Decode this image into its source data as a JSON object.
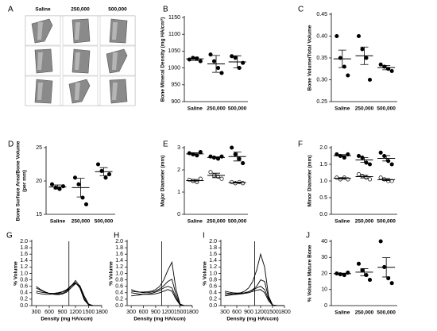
{
  "images": {
    "label": "A",
    "columns": [
      "Saline",
      "250,000",
      "500,000"
    ]
  },
  "chart_data": [
    {
      "type": "dot",
      "label": "B",
      "ylabel": [
        "Bone Mineral Density (mg HA/cm³)"
      ],
      "categories": [
        "Saline",
        "250,000",
        "500,000"
      ],
      "ylim": [
        900,
        1150
      ],
      "yticks": [
        900,
        950,
        1000,
        1050,
        1100,
        1150
      ],
      "series": [
        {
          "marker": "filled",
          "points": [
            [
              1025,
              1030,
              1028,
              1020
            ],
            [
              1040,
              1020,
              1000,
              985
            ],
            [
              1035,
              1030,
              1000,
              1015
            ]
          ],
          "mean": [
            1027,
            1012,
            1018
          ],
          "sem": [
            5,
            25,
            18
          ]
        }
      ]
    },
    {
      "type": "dot",
      "label": "C",
      "ylabel": [
        "Bone Volume/Total Volume"
      ],
      "categories": [
        "Saline",
        "250,000",
        "500,000"
      ],
      "ylim": [
        0.25,
        0.45
      ],
      "yticks": [
        0.25,
        {
          "value": 0.3,
          "label": "0.30"
        },
        0.35,
        {
          "value": 0.4,
          "label": "0.40"
        },
        0.45
      ],
      "series": [
        {
          "marker": "filled",
          "points": [
            [
              0.4,
              0.35,
              0.33,
              0.31
            ],
            [
              0.4,
              0.37,
              0.35,
              0.3
            ],
            [
              0.335,
              0.33,
              0.325,
              0.32
            ]
          ],
          "mean": [
            0.348,
            0.355,
            0.328
          ],
          "sem": [
            0.02,
            0.02,
            0.005
          ]
        }
      ]
    },
    {
      "type": "dot",
      "label": "D",
      "ylabel": [
        "Bone Surface Area/Bone Volume",
        "(per mm)"
      ],
      "categories": [
        "Saline",
        "250,000",
        "500,000"
      ],
      "ylim": [
        15,
        25
      ],
      "yticks": [
        15,
        20,
        25
      ],
      "series": [
        {
          "marker": "filled",
          "points": [
            [
              19.5,
              19,
              18.8,
              19.2
            ],
            [
              20.5,
              19.5,
              17.5,
              16.5
            ],
            [
              22.5,
              21.5,
              20.5,
              21
            ]
          ],
          "mean": [
            19.1,
            19,
            21.4
          ],
          "sem": [
            0.3,
            1.4,
            0.6
          ]
        }
      ]
    },
    {
      "type": "dot",
      "label": "E",
      "ylabel": [
        "Major Diameter  (mm)"
      ],
      "categories": [
        "Saline",
        "250,000",
        "500,000"
      ],
      "ylim": [
        0,
        3
      ],
      "yticks": [
        0,
        1,
        2,
        3
      ],
      "series": [
        {
          "marker": "filled",
          "points": [
            [
              2.75,
              2.7,
              2.65,
              2.8
            ],
            [
              2.6,
              2.55,
              2.5,
              2.6
            ],
            [
              3.0,
              2.7,
              2.5,
              2.3
            ]
          ],
          "mean": [
            2.72,
            2.56,
            2.6
          ],
          "sem": [
            0.05,
            0.03,
            0.2
          ]
        },
        {
          "marker": "open",
          "points": [
            [
              1.55,
              1.5,
              1.45,
              1.6
            ],
            [
              1.9,
              1.75,
              1.7,
              1.6
            ],
            [
              1.45,
              1.4,
              1.45,
              1.4
            ]
          ],
          "mean": [
            1.52,
            1.75,
            1.43
          ],
          "sem": [
            0.05,
            0.1,
            0.02
          ]
        }
      ]
    },
    {
      "type": "dot",
      "label": "F",
      "ylabel": [
        "Minor Diameter (mm)"
      ],
      "categories": [
        "Saline",
        "250,000",
        "500,000"
      ],
      "ylim": [
        0,
        2
      ],
      "yticks": [
        {
          "value": 0,
          "label": "0.0"
        },
        0.5,
        {
          "value": 1,
          "label": "1.0"
        },
        1.5,
        {
          "value": 2,
          "label": "2.0"
        }
      ],
      "series": [
        {
          "marker": "filled",
          "points": [
            [
              1.8,
              1.75,
              1.7,
              1.8
            ],
            [
              1.75,
              1.7,
              1.55,
              1.5
            ],
            [
              1.85,
              1.75,
              1.6,
              1.5
            ]
          ],
          "mean": [
            1.76,
            1.63,
            1.68
          ],
          "sem": [
            0.03,
            0.07,
            0.08
          ]
        },
        {
          "marker": "open",
          "points": [
            [
              1.1,
              1.05,
              1.1,
              1.05
            ],
            [
              1.2,
              1.15,
              1.1,
              1.05
            ],
            [
              1.1,
              1.05,
              1.0,
              1.0
            ]
          ],
          "mean": [
            1.08,
            1.13,
            1.04
          ],
          "sem": [
            0.02,
            0.04,
            0.03
          ]
        }
      ]
    },
    {
      "type": "line",
      "label": "G",
      "xlabel": "Density (mg HA/ccm)",
      "ylabel": [
        "% Volume"
      ],
      "x": [
        300,
        400,
        500,
        600,
        700,
        800,
        900,
        1000,
        1100,
        1200,
        1300,
        1400,
        1500,
        1600,
        1700,
        1800
      ],
      "xlim": [
        200,
        1800
      ],
      "xticks": [
        300,
        600,
        900,
        1200,
        1500,
        1800
      ],
      "ylim": [
        0,
        2
      ],
      "yticks": [
        {
          "value": 0,
          "label": "0.0"
        },
        0.2,
        0.4,
        0.6,
        0.8,
        {
          "value": 1,
          "label": "1.0"
        },
        1.2,
        1.4,
        1.6,
        1.8,
        {
          "value": 2,
          "label": "2.0"
        }
      ],
      "vline": 1050,
      "series": [
        {
          "color": "#000000",
          "values": [
            0.55,
            0.48,
            0.42,
            0.38,
            0.36,
            0.36,
            0.38,
            0.45,
            0.6,
            0.78,
            0.6,
            0.2,
            0.03,
            0,
            0,
            0
          ]
        },
        {
          "color": "#000000",
          "values": [
            0.45,
            0.42,
            0.4,
            0.38,
            0.38,
            0.4,
            0.43,
            0.5,
            0.62,
            0.72,
            0.55,
            0.18,
            0.02,
            0,
            0,
            0
          ]
        },
        {
          "color": "#000000",
          "values": [
            0.4,
            0.37,
            0.35,
            0.35,
            0.36,
            0.38,
            0.42,
            0.48,
            0.6,
            0.7,
            0.58,
            0.25,
            0.04,
            0,
            0,
            0
          ]
        },
        {
          "color": "#000000",
          "values": [
            0.6,
            0.5,
            0.43,
            0.38,
            0.35,
            0.34,
            0.36,
            0.42,
            0.55,
            0.68,
            0.62,
            0.3,
            0.05,
            0,
            0,
            0
          ]
        }
      ]
    },
    {
      "type": "line",
      "label": "H",
      "xlabel": "Density (mg HA/ccm)",
      "ylabel": [
        "% Volume"
      ],
      "x": [
        300,
        400,
        500,
        600,
        700,
        800,
        900,
        1000,
        1100,
        1200,
        1300,
        1400,
        1500,
        1600,
        1700,
        1800
      ],
      "xlim": [
        200,
        1800
      ],
      "xticks": [
        300,
        600,
        900,
        1200,
        1500,
        1800
      ],
      "ylim": [
        0,
        2
      ],
      "yticks": [
        {
          "value": 0,
          "label": "0.0"
        },
        0.2,
        0.4,
        0.6,
        0.8,
        {
          "value": 1,
          "label": "1.0"
        },
        1.2,
        1.4,
        1.6,
        1.8,
        {
          "value": 2,
          "label": "2.0"
        }
      ],
      "vline": 1050,
      "series": [
        {
          "color": "#000000",
          "values": [
            0.45,
            0.43,
            0.42,
            0.42,
            0.43,
            0.45,
            0.5,
            0.6,
            0.8,
            1.1,
            1.35,
            0.5,
            0.05,
            0,
            0,
            0
          ]
        },
        {
          "color": "#000000",
          "values": [
            0.5,
            0.45,
            0.42,
            0.4,
            0.4,
            0.42,
            0.45,
            0.52,
            0.62,
            0.75,
            0.82,
            0.35,
            0.03,
            0,
            0,
            0
          ]
        },
        {
          "color": "#000000",
          "values": [
            0.3,
            0.32,
            0.33,
            0.35,
            0.36,
            0.38,
            0.42,
            0.47,
            0.55,
            0.6,
            0.55,
            0.25,
            0.02,
            0,
            0,
            0
          ]
        },
        {
          "color": "#000000",
          "values": [
            0.4,
            0.38,
            0.36,
            0.35,
            0.35,
            0.35,
            0.37,
            0.4,
            0.45,
            0.5,
            0.45,
            0.2,
            0.02,
            0,
            0,
            0
          ]
        }
      ]
    },
    {
      "type": "line",
      "label": "I",
      "xlabel": "Density (mg HA/ccm)",
      "ylabel": [
        "% Volume"
      ],
      "x": [
        300,
        400,
        500,
        600,
        700,
        800,
        900,
        1000,
        1100,
        1200,
        1300,
        1400,
        1500,
        1600,
        1700,
        1800
      ],
      "xlim": [
        200,
        1800
      ],
      "xticks": [
        300,
        600,
        900,
        1200,
        1500,
        1800
      ],
      "ylim": [
        0,
        2
      ],
      "yticks": [
        {
          "value": 0,
          "label": "0.0"
        },
        0.2,
        0.4,
        0.6,
        0.8,
        {
          "value": 1,
          "label": "1.0"
        },
        1.2,
        1.4,
        1.6,
        1.8,
        {
          "value": 2,
          "label": "2.0"
        }
      ],
      "vline": 1050,
      "series": [
        {
          "color": "#000000",
          "values": [
            0.35,
            0.35,
            0.36,
            0.38,
            0.4,
            0.45,
            0.55,
            0.75,
            1.1,
            1.6,
            1.2,
            0.3,
            0.02,
            0,
            0,
            0
          ]
        },
        {
          "color": "#000000",
          "values": [
            0.45,
            0.42,
            0.4,
            0.39,
            0.39,
            0.4,
            0.43,
            0.5,
            0.6,
            0.8,
            0.75,
            0.25,
            0.02,
            0,
            0,
            0
          ]
        },
        {
          "color": "#000000",
          "values": [
            0.4,
            0.38,
            0.37,
            0.37,
            0.38,
            0.4,
            0.43,
            0.48,
            0.55,
            0.6,
            0.5,
            0.2,
            0.02,
            0,
            0,
            0
          ]
        },
        {
          "color": "#000000",
          "values": [
            0.3,
            0.32,
            0.34,
            0.35,
            0.36,
            0.38,
            0.4,
            0.44,
            0.48,
            0.5,
            0.4,
            0.15,
            0.01,
            0,
            0,
            0
          ]
        }
      ]
    },
    {
      "type": "dot",
      "label": "J",
      "ylabel": [
        "% Volume Mature Bone"
      ],
      "categories": [
        "Saline",
        "250,000",
        "500,000"
      ],
      "ylim": [
        0,
        40
      ],
      "yticks": [
        0,
        10,
        20,
        30,
        40
      ],
      "series": [
        {
          "marker": "filled",
          "points": [
            [
              20,
              19.5,
              19,
              20.5
            ],
            [
              26,
              22,
              19,
              16
            ],
            [
              40,
              24,
              17,
              14
            ]
          ],
          "mean": [
            19.8,
            20.8,
            23.8
          ],
          "sem": [
            0.4,
            2.2,
            6
          ]
        }
      ]
    }
  ]
}
